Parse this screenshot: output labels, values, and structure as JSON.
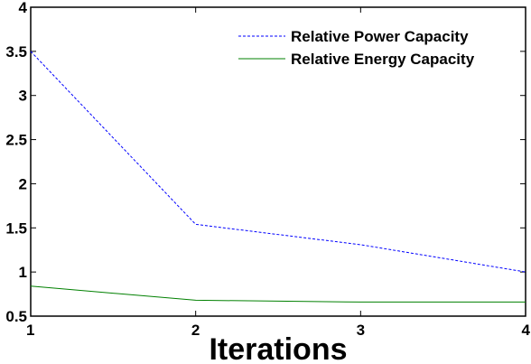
{
  "chart_data": {
    "type": "line",
    "title": "",
    "xlabel": "Iterations",
    "ylabel": "",
    "x": [
      1,
      2,
      3,
      4
    ],
    "xlim": [
      1,
      4
    ],
    "ylim": [
      0.5,
      4
    ],
    "xticks": [
      1,
      2,
      3,
      4
    ],
    "yticks": [
      0.5,
      1,
      1.5,
      2,
      2.5,
      3,
      3.5,
      4
    ],
    "ytick_labels": [
      "0.5",
      "1",
      "1.5",
      "2",
      "2.5",
      "3",
      "3.5",
      "4"
    ],
    "grid": false,
    "legend_position": "top-right",
    "series": [
      {
        "name": "Relative Power Capacity",
        "values": [
          3.5,
          1.54,
          1.31,
          1.0
        ],
        "color": "#0000ff",
        "style": "dashed"
      },
      {
        "name": "Relative Energy Capacity",
        "values": [
          0.84,
          0.68,
          0.66,
          0.66
        ],
        "color": "#008000",
        "style": "solid"
      }
    ]
  }
}
